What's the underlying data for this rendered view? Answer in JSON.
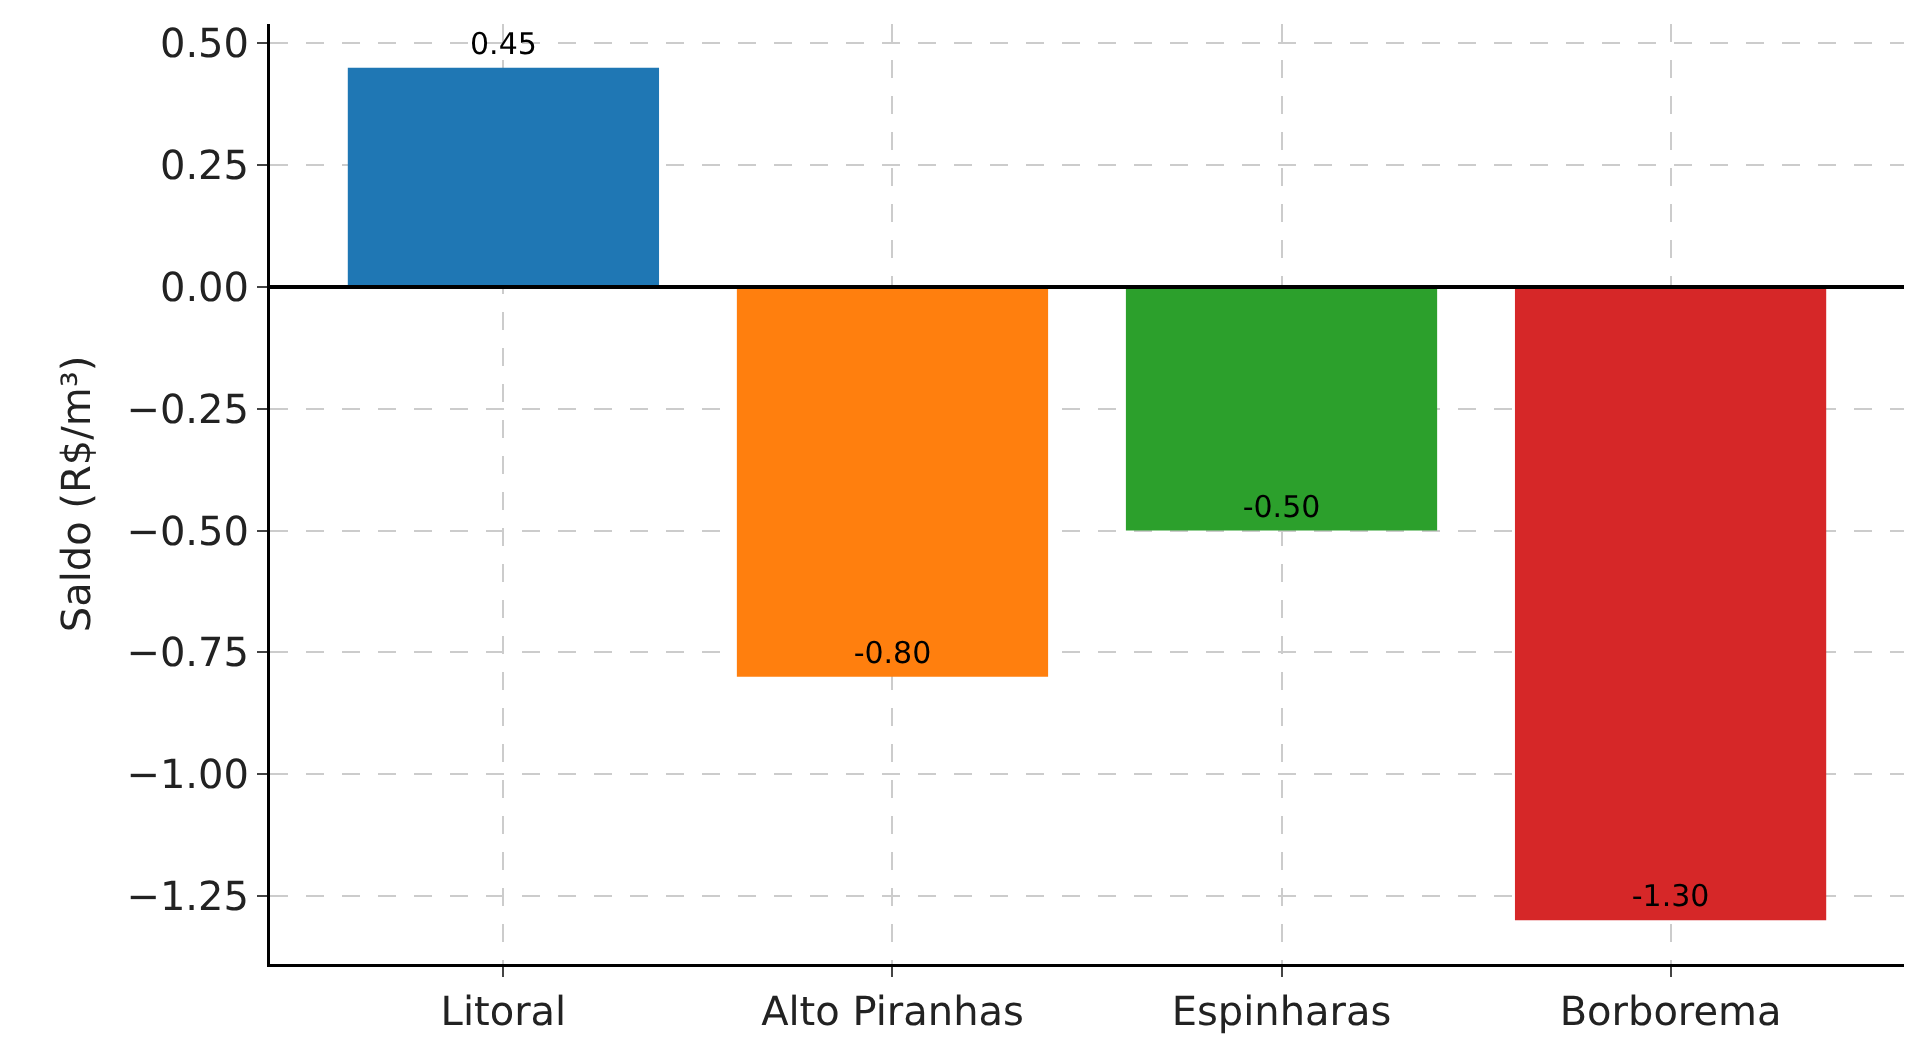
{
  "chart_data": {
    "type": "bar",
    "ylabel": "Saldo (R$/m³)",
    "categories": [
      "Litoral",
      "Alto Piranhas",
      "Espinharas",
      "Borborema"
    ],
    "values": [
      0.45,
      -0.8,
      -0.5,
      -1.3
    ],
    "colors": [
      "#1f77b4",
      "#ff7f0e",
      "#2ca02c",
      "#d62728"
    ],
    "value_labels": [
      "0.45",
      "-0.80",
      "-0.50",
      "-1.30"
    ],
    "ylim": [
      -1.39,
      0.54
    ],
    "yticks": [
      {
        "value": 0.5,
        "label": "0.50"
      },
      {
        "value": 0.25,
        "label": "0.25"
      },
      {
        "value": 0,
        "label": "0.00"
      },
      {
        "value": -0.25,
        "label": "−0.25"
      },
      {
        "value": -0.5,
        "label": "−0.50"
      },
      {
        "value": -0.75,
        "label": "−0.75"
      },
      {
        "value": -1,
        "label": "−1.00"
      },
      {
        "value": -1.25,
        "label": "−1.25"
      }
    ],
    "ref_lines": [
      {
        "axis": "y",
        "value": 0,
        "color": "#000000"
      }
    ],
    "grid": true
  }
}
